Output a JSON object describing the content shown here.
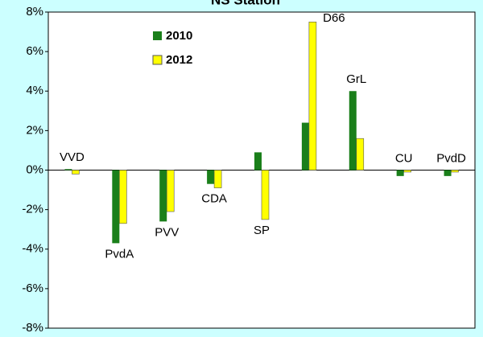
{
  "chart_data": {
    "type": "bar",
    "title": "NS Station",
    "categories": [
      "VVD",
      "PvdA",
      "PVV",
      "CDA",
      "SP",
      "D66",
      "GrL",
      "CU",
      "PvdD"
    ],
    "series": [
      {
        "name": "2010",
        "color": "#1a7f1a",
        "values": [
          0.05,
          -3.7,
          -2.6,
          -0.7,
          0.9,
          2.4,
          4.0,
          -0.3,
          -0.3
        ]
      },
      {
        "name": "2012",
        "color": "#ffff00",
        "values": [
          -0.2,
          -2.7,
          -2.1,
          -0.9,
          -2.5,
          7.5,
          1.6,
          -0.1,
          -0.1
        ]
      }
    ],
    "ylim": [
      -8,
      8
    ],
    "yticks": [
      {
        "value": -8,
        "label": "-8%"
      },
      {
        "value": -6,
        "label": "-6%"
      },
      {
        "value": -4,
        "label": "-4%"
      },
      {
        "value": -2,
        "label": "-2%"
      },
      {
        "value": 0,
        "label": "0%"
      },
      {
        "value": 2,
        "label": "2%"
      },
      {
        "value": 4,
        "label": "4%"
      },
      {
        "value": 6,
        "label": "6%"
      },
      {
        "value": 8,
        "label": "8%"
      }
    ],
    "legend": "upper-left"
  }
}
